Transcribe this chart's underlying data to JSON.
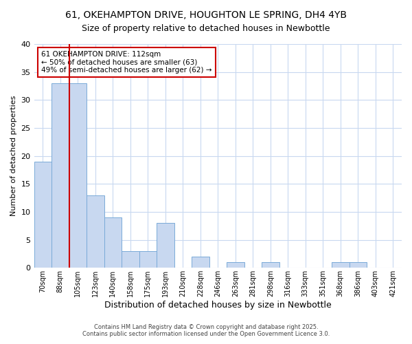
{
  "title_line1": "61, OKEHAMPTON DRIVE, HOUGHTON LE SPRING, DH4 4YB",
  "title_line2": "Size of property relative to detached houses in Newbottle",
  "xlabel": "Distribution of detached houses by size in Newbottle",
  "ylabel": "Number of detached properties",
  "categories": [
    "70sqm",
    "88sqm",
    "105sqm",
    "123sqm",
    "140sqm",
    "158sqm",
    "175sqm",
    "193sqm",
    "210sqm",
    "228sqm",
    "246sqm",
    "263sqm",
    "281sqm",
    "298sqm",
    "316sqm",
    "333sqm",
    "351sqm",
    "368sqm",
    "386sqm",
    "403sqm",
    "421sqm"
  ],
  "values": [
    19,
    33,
    33,
    13,
    9,
    3,
    3,
    8,
    0,
    2,
    0,
    1,
    0,
    1,
    0,
    0,
    0,
    1,
    1,
    0,
    0
  ],
  "bar_color": "#c8d8f0",
  "bar_edge_color": "#7aaad8",
  "red_line_x": 1.5,
  "red_line_label": "61 OKEHAMPTON DRIVE: 112sqm",
  "annotation_line2": "← 50% of detached houses are smaller (63)",
  "annotation_line3": "49% of semi-detached houses are larger (62) →",
  "ylim": [
    0,
    40
  ],
  "yticks": [
    0,
    5,
    10,
    15,
    20,
    25,
    30,
    35,
    40
  ],
  "background_color": "#ffffff",
  "grid_color": "#c8d8f0",
  "annotation_box_color": "#ffffff",
  "annotation_box_edge": "#cc0000",
  "footer_line1": "Contains HM Land Registry data © Crown copyright and database right 2025.",
  "footer_line2": "Contains public sector information licensed under the Open Government Licence 3.0."
}
